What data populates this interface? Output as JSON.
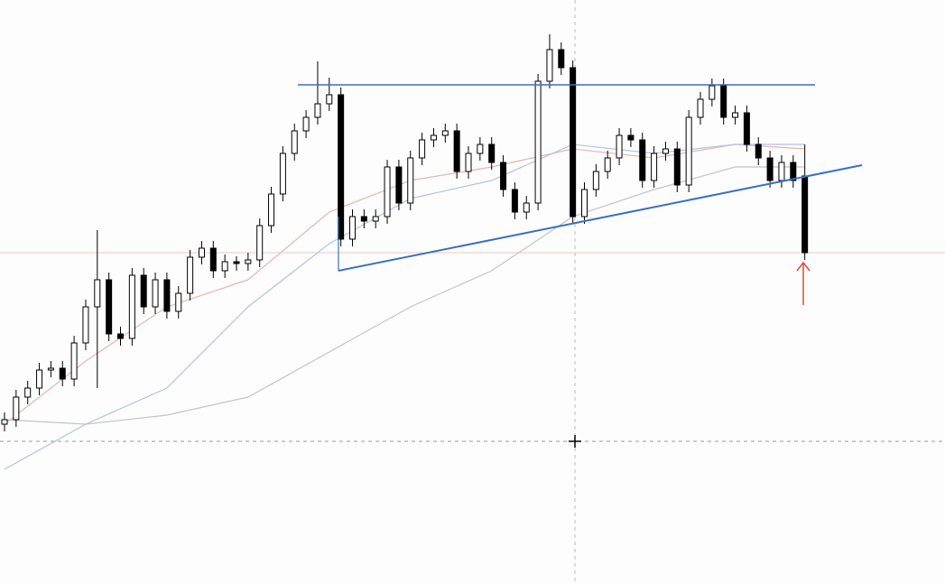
{
  "chart_data": {
    "type": "candlestick",
    "ylim": [
      0,
      646
    ],
    "up_color": "#ffffff",
    "down_color": "#000000",
    "edge_color": "#000000",
    "open": [
      176,
      181,
      206,
      216,
      236,
      238,
      226,
      266,
      306,
      336,
      276,
      271,
      341,
      306,
      336,
      301,
      321,
      361,
      371,
      346,
      356,
      354,
      358,
      396,
      431,
      476,
      501,
      516,
      531,
      541,
      381,
      406,
      401,
      406,
      461,
      421,
      471,
      491,
      496,
      501,
      456,
      476,
      486,
      466,
      436,
      411,
      421,
      556,
      591,
      571,
      406,
      436,
      456,
      471,
      496,
      491,
      446,
      476,
      481,
      441,
      516,
      536,
      551,
      516,
      521,
      486,
      471,
      446,
      466,
      451
    ],
    "high": [
      189,
      214,
      224,
      244,
      246,
      246,
      274,
      314,
      391,
      344,
      284,
      349,
      349,
      344,
      344,
      329,
      369,
      379,
      379,
      364,
      362,
      366,
      404,
      439,
      484,
      509,
      524,
      578,
      560,
      549,
      414,
      414,
      414,
      469,
      469,
      479,
      499,
      504,
      509,
      509,
      484,
      494,
      494,
      474,
      444,
      429,
      564,
      608,
      599,
      579,
      444,
      464,
      479,
      504,
      504,
      499,
      484,
      489,
      489,
      524,
      544,
      559,
      559,
      529,
      529,
      494,
      479,
      474,
      474,
      486
    ],
    "low": [
      168,
      173,
      198,
      208,
      228,
      218,
      218,
      258,
      216,
      268,
      263,
      263,
      298,
      298,
      293,
      293,
      313,
      353,
      338,
      338,
      346,
      346,
      350,
      388,
      423,
      468,
      493,
      508,
      523,
      373,
      373,
      393,
      393,
      398,
      413,
      413,
      463,
      483,
      488,
      448,
      448,
      468,
      458,
      428,
      403,
      403,
      413,
      548,
      563,
      398,
      398,
      428,
      448,
      463,
      483,
      438,
      438,
      468,
      433,
      433,
      508,
      528,
      508,
      508,
      478,
      463,
      438,
      438,
      438,
      358
    ],
    "close": [
      181,
      206,
      216,
      236,
      238,
      226,
      266,
      306,
      336,
      276,
      271,
      341,
      306,
      336,
      301,
      321,
      361,
      371,
      346,
      356,
      354,
      358,
      396,
      431,
      476,
      501,
      516,
      531,
      541,
      381,
      406,
      401,
      406,
      461,
      421,
      471,
      491,
      496,
      501,
      456,
      476,
      486,
      466,
      436,
      411,
      421,
      556,
      591,
      571,
      406,
      436,
      456,
      471,
      496,
      491,
      446,
      476,
      481,
      441,
      516,
      536,
      551,
      516,
      521,
      486,
      471,
      446,
      466,
      446,
      366
    ],
    "series": [
      {
        "color": "#e8b4b4",
        "x": [
          0,
          7,
          14,
          21,
          28,
          35,
          42,
          49,
          56,
          63,
          69
        ],
        "values": [
          176,
          246,
          306,
          336,
          411,
          446,
          461,
          481,
          471,
          486,
          481
        ]
      },
      {
        "color": "#b4c0e8",
        "x": [
          0,
          7,
          14,
          21,
          28,
          35,
          42,
          49,
          56,
          63,
          69
        ],
        "values": [
          126,
          176,
          216,
          306,
          376,
          426,
          446,
          486,
          476,
          486,
          486
        ]
      },
      {
        "color": "#c4c4c4",
        "x": [
          0,
          7,
          14,
          21,
          28,
          35,
          42,
          49,
          56,
          63,
          69
        ],
        "values": [
          181,
          176,
          186,
          206,
          256,
          306,
          346,
          406,
          436,
          461,
          461
        ]
      }
    ]
  }
}
